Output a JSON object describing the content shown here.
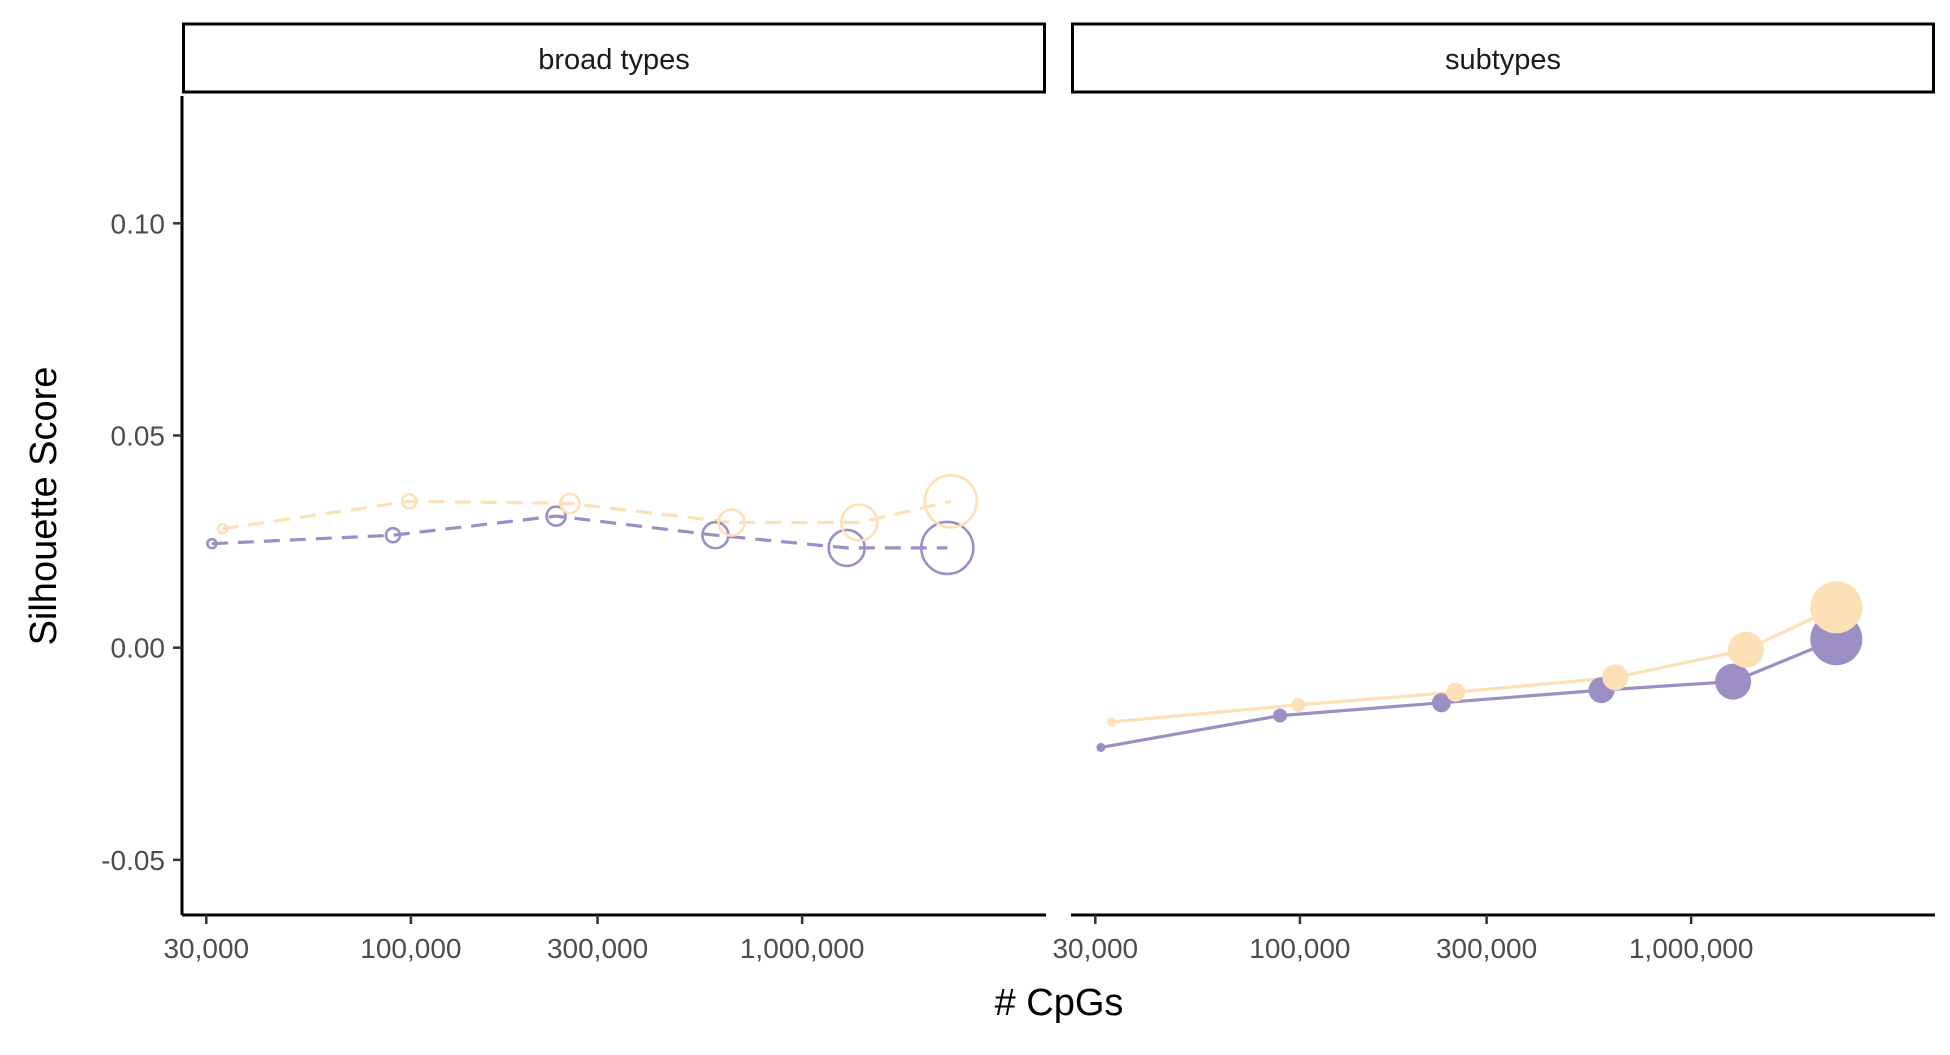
{
  "chart_data": {
    "type": "line",
    "xlabel": "# CpGs",
    "ylabel": "Silhouette Score",
    "x_scale": "log10",
    "xlim": [
      26000,
      4200000
    ],
    "ylim": [
      -0.063,
      0.13
    ],
    "x_ticks": [
      {
        "value": 30000,
        "label": "30,000"
      },
      {
        "value": 100000,
        "label": "100,000"
      },
      {
        "value": 300000,
        "label": "300,000"
      },
      {
        "value": 1000000,
        "label": "1,000,000"
      }
    ],
    "y_ticks": [
      {
        "value": 0.1,
        "label": "0.10"
      },
      {
        "value": 0.05,
        "label": "0.05"
      },
      {
        "value": 0.0,
        "label": "0.00"
      },
      {
        "value": -0.05,
        "label": "-0.05"
      }
    ],
    "grid": false,
    "legend": "none",
    "series_colors": [
      "#9b8fc6",
      "#fde0b5"
    ],
    "panels": [
      {
        "strip_label": "broad types",
        "line_style": "dashed",
        "marker": "open-circle",
        "series": [
          {
            "color": "#9b8fc6",
            "points": [
              {
                "x": 31000,
                "y": 0.0245,
                "size": 1
              },
              {
                "x": 90000,
                "y": 0.0265,
                "size": 2
              },
              {
                "x": 235000,
                "y": 0.031,
                "size": 3
              },
              {
                "x": 600000,
                "y": 0.0265,
                "size": 4
              },
              {
                "x": 1300000,
                "y": 0.0235,
                "size": 5
              },
              {
                "x": 2350000,
                "y": 0.0235,
                "size": 6
              }
            ]
          },
          {
            "color": "#fde0b5",
            "points": [
              {
                "x": 33000,
                "y": 0.028,
                "size": 1
              },
              {
                "x": 99000,
                "y": 0.0345,
                "size": 2
              },
              {
                "x": 255000,
                "y": 0.034,
                "size": 3
              },
              {
                "x": 660000,
                "y": 0.0295,
                "size": 4
              },
              {
                "x": 1400000,
                "y": 0.0295,
                "size": 5
              },
              {
                "x": 2400000,
                "y": 0.0345,
                "size": 6
              }
            ]
          }
        ]
      },
      {
        "strip_label": "subtypes",
        "line_style": "solid",
        "marker": "filled-circle",
        "series": [
          {
            "color": "#9b8fc6",
            "points": [
              {
                "x": 31000,
                "y": -0.0235,
                "size": 1
              },
              {
                "x": 89000,
                "y": -0.016,
                "size": 2
              },
              {
                "x": 230000,
                "y": -0.013,
                "size": 3
              },
              {
                "x": 590000,
                "y": -0.01,
                "size": 4
              },
              {
                "x": 1280000,
                "y": -0.008,
                "size": 5
              },
              {
                "x": 2350000,
                "y": 0.002,
                "size": 6
              }
            ]
          },
          {
            "color": "#fde0b5",
            "points": [
              {
                "x": 33000,
                "y": -0.0175,
                "size": 1
              },
              {
                "x": 99000,
                "y": -0.0135,
                "size": 2
              },
              {
                "x": 250000,
                "y": -0.0105,
                "size": 3
              },
              {
                "x": 640000,
                "y": -0.007,
                "size": 4
              },
              {
                "x": 1380000,
                "y": -0.0005,
                "size": 5
              },
              {
                "x": 2350000,
                "y": 0.0095,
                "size": 6
              }
            ]
          }
        ]
      }
    ]
  }
}
